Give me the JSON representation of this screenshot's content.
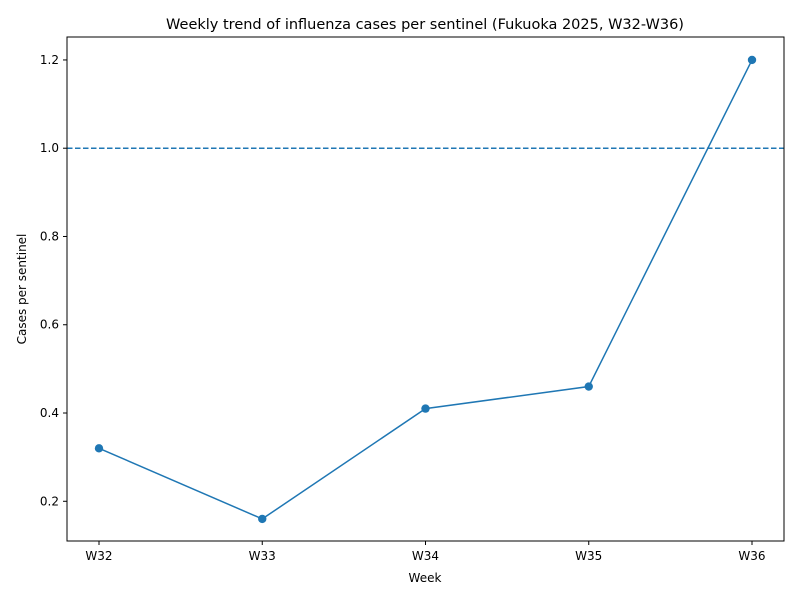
{
  "chart_data": {
    "type": "line",
    "title": "Weekly trend of influenza cases per sentinel (Fukuoka 2025, W32-W36)",
    "xlabel": "Week",
    "ylabel": "Cases per sentinel",
    "categories": [
      "W32",
      "W33",
      "W34",
      "W35",
      "W36"
    ],
    "series": [
      {
        "name": "Cases per sentinel",
        "values": [
          0.32,
          0.16,
          0.41,
          0.46,
          1.2
        ],
        "color": "#1f77b4"
      }
    ],
    "threshold": {
      "value": 1.0,
      "style": "dashed",
      "color": "#1f77b4"
    },
    "ylim": [
      0.11,
      1.252
    ],
    "yticks": [
      0.2,
      0.4,
      0.6,
      0.8,
      1.0,
      1.2
    ],
    "ytick_labels": [
      "0.2",
      "0.4",
      "0.6",
      "0.8",
      "1.0",
      "1.2"
    ],
    "grid": false,
    "legend": "none"
  }
}
